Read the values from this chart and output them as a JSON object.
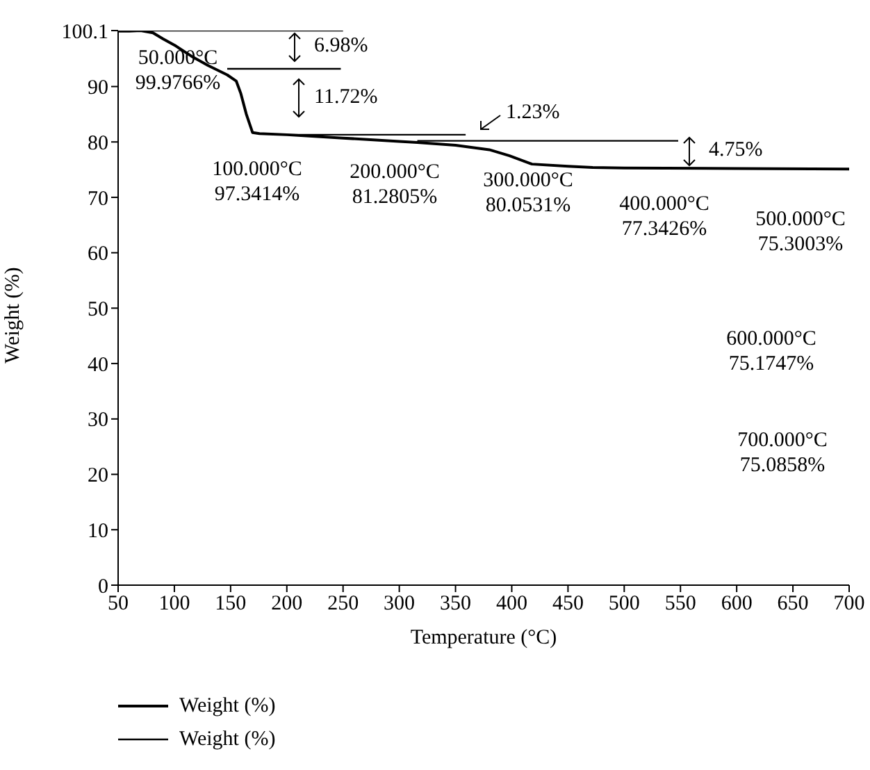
{
  "chart_data": {
    "type": "line",
    "xlabel": "Temperature (°C)",
    "ylabel": "Weight (%)",
    "xlim": [
      50,
      700
    ],
    "xticks": [
      50,
      100,
      150,
      200,
      250,
      300,
      350,
      400,
      450,
      500,
      550,
      600,
      650,
      700
    ],
    "ylim": [
      0,
      100.1
    ],
    "yticks": [
      0,
      10,
      20,
      30,
      40,
      50,
      60,
      70,
      80,
      90,
      100.1
    ],
    "grid": false,
    "legend": "bottom left",
    "marker": "none",
    "line_style": "solid",
    "series": [
      {
        "name": "Weight (%)",
        "color": "#000000",
        "x": [
          50,
          60,
          70,
          81,
          90,
          101.5,
          115,
          130,
          147,
          155,
          159,
          164,
          169.5,
          175.7,
          200,
          250,
          300,
          316,
          350,
          380,
          398,
          418,
          450,
          472,
          500,
          600,
          700
        ],
        "values": [
          100.0,
          100.0,
          100.1,
          99.7,
          98.6,
          97.3,
          95.5,
          93.8,
          92.1,
          91.0,
          88.8,
          85.0,
          81.7,
          81.5,
          81.3,
          80.7,
          80.1,
          79.9,
          79.4,
          78.6,
          77.5,
          76.0,
          75.6,
          75.4,
          75.3,
          75.2,
          75.1
        ]
      },
      {
        "name": "Weight (%)",
        "color": "#000000",
        "x": [
          50,
          250
        ],
        "values": [
          100.1,
          100.1
        ]
      },
      {
        "color": "#000000",
        "x": [
          147,
          248
        ],
        "values": [
          93.2,
          93.2
        ]
      },
      {
        "color": "#000000",
        "x": [
          200,
          359
        ],
        "values": [
          81.3,
          81.3
        ]
      },
      {
        "color": "#000000",
        "x": [
          316,
          548
        ],
        "values": [
          80.2,
          80.2
        ]
      }
    ],
    "annotations": [
      "50.000°C 99.9766%",
      "100.000°C 97.3414%",
      "200.000°C 81.2805%",
      "300.000°C 80.0531%",
      "400.000°C 77.3426%",
      "500.000°C 75.3003%",
      "600.000°C 75.1747%",
      "700.000°C 75.0858%",
      "6.98%",
      "11.72%",
      "1.23%",
      "4.75%"
    ]
  }
}
